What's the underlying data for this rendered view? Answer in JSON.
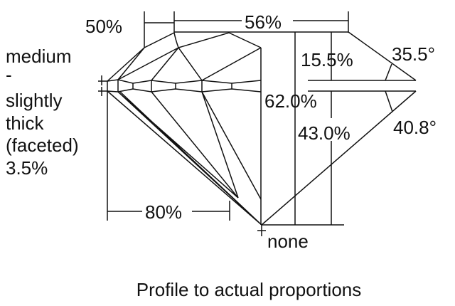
{
  "girdle_label": [
    "medium",
    "-",
    "slightly",
    "thick",
    "(faceted)",
    "3.5%"
  ],
  "labels": {
    "crown_height_dim": "50%",
    "table": "56%",
    "crown_height": "15.5%",
    "crown_angle": "35.5°",
    "total_depth": "62.0%",
    "pavilion_depth": "43.0%",
    "pavilion_angle": "40.8°",
    "lower_half": "80%",
    "culet": "none"
  },
  "caption": "Profile to actual proportions",
  "colors": {
    "line": "#111111",
    "background": "#ffffff"
  }
}
